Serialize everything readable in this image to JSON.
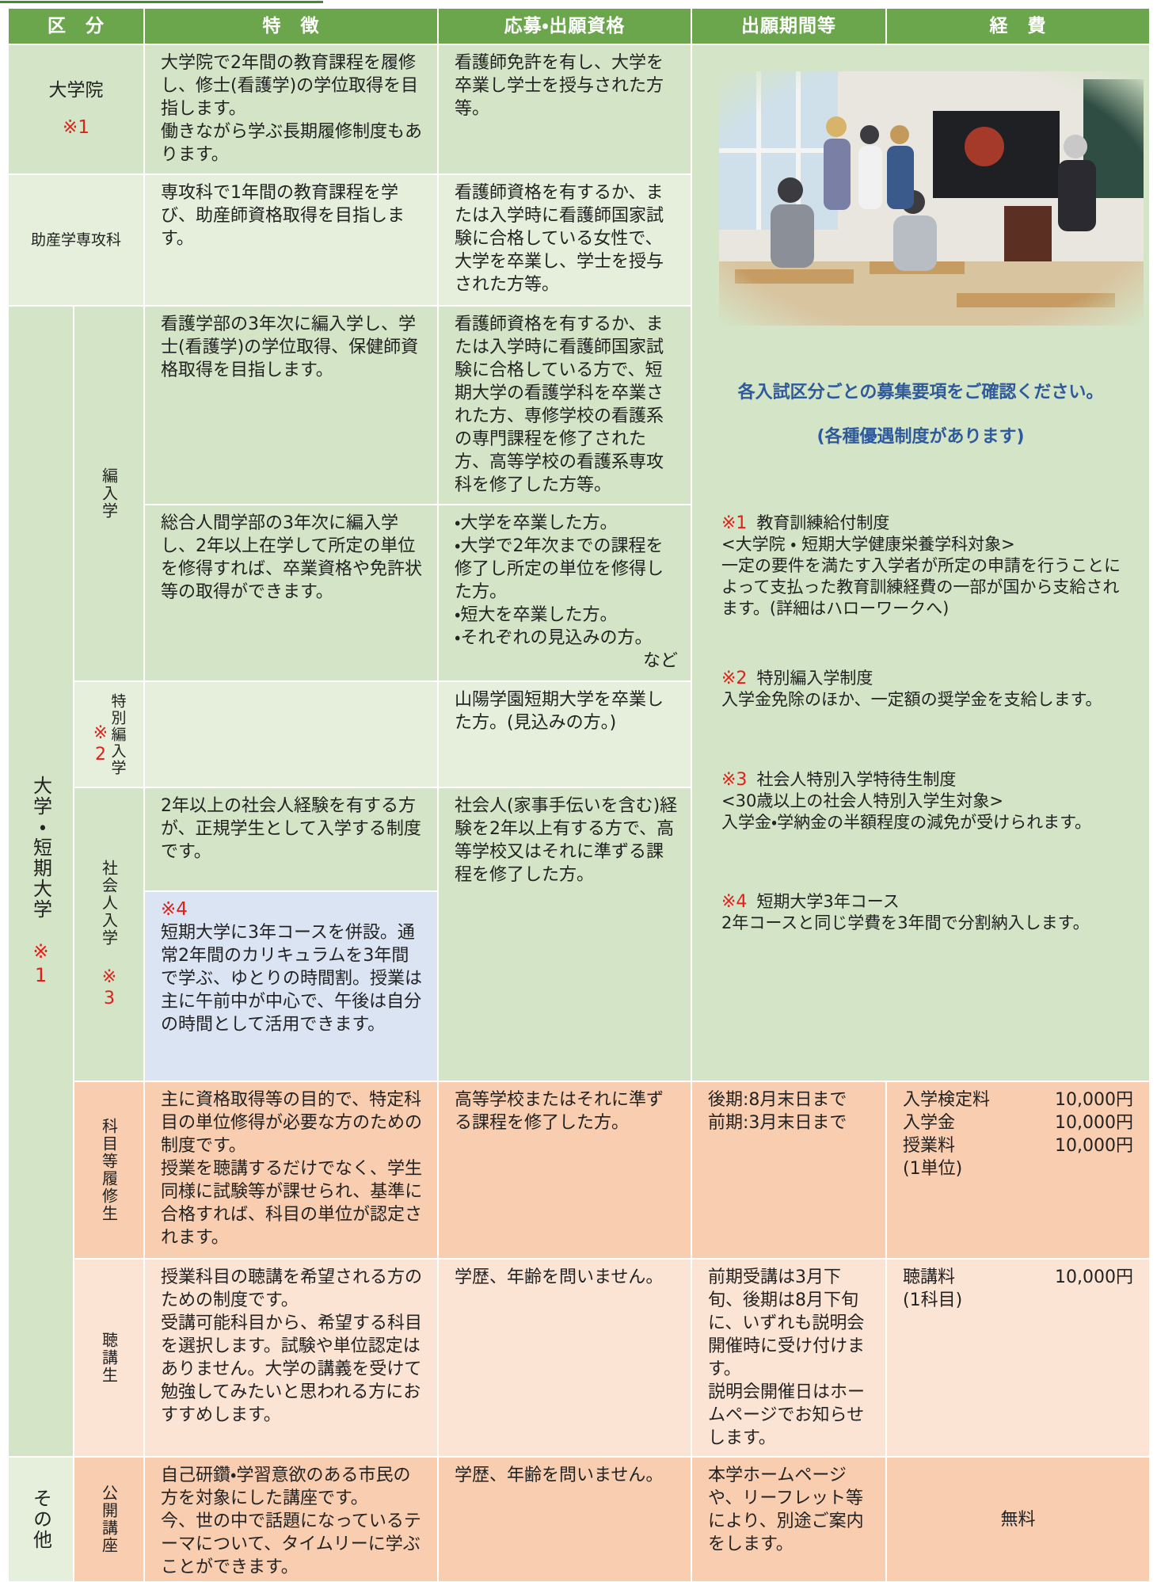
{
  "header": {
    "columns": [
      "区　分",
      "特　徴",
      "応募・出願資格",
      "出願期間等",
      "経　費"
    ]
  },
  "graduate": {
    "label": "大学院",
    "mark": "※1",
    "features": [
      "大学院で2年間の教育課程を履修し、修士(看護学)の学位取得を目指します。",
      "働きながら学ぶ長期履修制度もあります。"
    ],
    "eligibility": [
      "看護師免許を有し、大学を卒業し学士を授与された方等。"
    ]
  },
  "midwifery": {
    "label": "助産学専攻科",
    "features": [
      "専攻科で1年間の教育課程を学び、助産師資格取得を目指します。"
    ],
    "eligibility": [
      "看護師資格を有するか、または入学時に看護師国家試験に合格している女性で、大学を卒業し、学士を授与された方等。"
    ]
  },
  "university": {
    "label": "大学・短期大学",
    "mark": "※1",
    "transfer": {
      "label": "編入学",
      "nursing": {
        "features": [
          "看護学部の3年次に編入学し、学士(看護学)の学位取得、保健師資格取得を目指します。"
        ],
        "eligibility": [
          "看護師資格を有するか、または入学時に看護師国家試験に合格している方で、短期大学の看護学科を卒業された方、専修学校の看護系の専門課程を修了された方、高等学校の看護系専攻科を修了した方等。"
        ]
      },
      "general": {
        "features": [
          "総合人間学部の3年次に編入学し、2年以上在学して所定の単位を修得すれば、卒業資格や免許状等の取得ができます。"
        ],
        "eligibility": [
          "・大学を卒業した方。",
          "・大学で2年次までの課程を修了し所定の単位を修得した方。",
          "・短大を卒業した方。",
          "・それぞれの見込みの方。"
        ],
        "note": "など"
      }
    },
    "special_transfer": {
      "label": "特別編入学",
      "mark": "※2",
      "eligibility": [
        "山陽学園短期大学を卒業した方。(見込みの方。)"
      ]
    },
    "working_adult": {
      "label": "社会人入学",
      "mark": "※3",
      "features": [
        "2年以上の社会人経験を有する方が、正規学生として入学する制度です。"
      ],
      "course": {
        "mark": "※4",
        "text": [
          "短期大学に3年コースを併設。通常2年間のカリキュラムを3年間で学ぶ、ゆとりの時間割。授業は主に午前中が中心で、午後は自分の時間として活用できます。"
        ]
      },
      "eligibility": [
        "社会人(家事手伝いを含む)経験を2年以上有する方で、高等学校又はそれに準ずる課程を修了した方。"
      ]
    },
    "credit_student": {
      "label": "科目等履修生",
      "features": [
        "主に資格取得等の目的で、特定科目の単位修得が必要な方のための制度です。",
        "授業を聴講するだけでなく、学生同様に試験等が課せられ、基準に合格すれば、科目の単位が認定されます。"
      ],
      "eligibility": [
        "高等学校またはそれに準ずる課程を修了した方。"
      ],
      "period": [
        "後期:8月末日まで",
        "前期:3月末日まで"
      ],
      "fees": [
        {
          "item": "入学検定料",
          "amount": "10,000円"
        },
        {
          "item": "入学金",
          "amount": "10,000円"
        },
        {
          "item": "授業料",
          "amount": "10,000円",
          "note": "(1単位)"
        }
      ]
    },
    "auditor": {
      "label": "聴講生",
      "features": [
        "授業科目の聴講を希望される方のための制度です。",
        "受講可能科目から、希望する科目を選択します。試験や単位認定はありません。大学の講義を受けて勉強してみたいと思われる方におすすめします。"
      ],
      "eligibility": [
        "学歴、年齢を問いません。"
      ],
      "period": [
        "前期受講は3月下旬、後期は8月下旬に、いずれも説明会開催時に受け付けます。",
        "説明会開催日はホームページでお知らせします。"
      ],
      "fees": [
        {
          "item": "聴講料",
          "amount": "10,000円",
          "note": "(1科目)"
        }
      ]
    }
  },
  "other": {
    "label": "その他",
    "public_lecture": {
      "label": "公開講座",
      "features": [
        "自己研鑽・学習意欲のある市民の方を対象にした講座です。",
        "今、世の中で話題になっているテーマについて、タイムリーに学ぶことができます。"
      ],
      "eligibility": [
        "学歴、年齢を問いません。"
      ],
      "period": [
        "本学ホームページや、リーフレット等により、別途ご案内をします。"
      ],
      "fees": "無料"
    }
  },
  "side_panel": {
    "notice": "各入試区分ごとの募集要項をご確認ください。",
    "subnotice": "(各種優遇制度があります)",
    "notes": [
      {
        "mark": "※1",
        "title": "教育訓練給付制度",
        "lines": [
          "<大学院 ・ 短期大学健康栄養学科対象>",
          "一定の要件を満たす入学者が所定の申請を行うことによって支払った教育訓練経費の一部が国から支給されます。(詳細はハローワークへ)"
        ]
      },
      {
        "mark": "※2",
        "title": "特別編入学制度",
        "lines": [
          "入学金免除のほか、一定額の奨学金を支給します。"
        ]
      },
      {
        "mark": "※3",
        "title": "社会人特別入学特待生制度",
        "lines": [
          "<30歳以上の社会人特別入学生対象>",
          "入学金・学納金の半額程度の減免が受けられます。"
        ]
      },
      {
        "mark": "※4",
        "title": "短期大学3年コース",
        "lines": [
          "2年コースと同じ学費を3年間で分割納入します。"
        ]
      }
    ]
  }
}
